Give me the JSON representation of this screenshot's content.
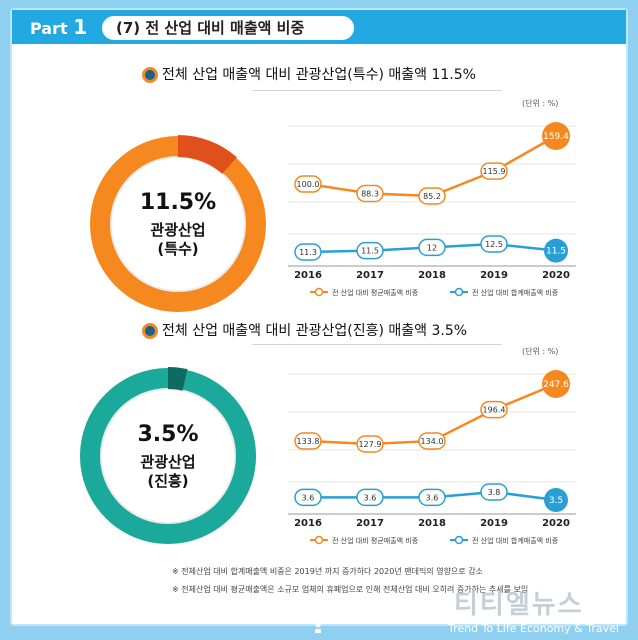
{
  "header": {
    "part_label": "Part",
    "part_number": "1",
    "title": "(7) 전 산업 대비 매출액 비중"
  },
  "sections": [
    {
      "title": "전체 산업 매출액 대비 관광산업(특수) 매출액 11.5%",
      "donut": {
        "percent_text": "11.5%",
        "label_line1": "관광산업",
        "label_line2": "(특수)",
        "value": 11.5,
        "color": "#f5891f",
        "light": "#fdd9b5"
      },
      "unit": "(단위 : %)"
    },
    {
      "title": "전체 산업 매출액 대비 관광산업(진흥) 매출액 3.5%",
      "donut": {
        "percent_text": "3.5%",
        "label_line1": "관광산업",
        "label_line2": "(진흥)",
        "value": 3.5,
        "color": "#1aa99a",
        "light": "#bfe7e1"
      },
      "unit": "(단위 : %)"
    }
  ],
  "chart_data": [
    {
      "type": "line",
      "x": [
        "2016",
        "2017",
        "2018",
        "2019",
        "2020"
      ],
      "series": [
        {
          "name": "전 산업 대비 평균매출액 비중",
          "values": [
            100.0,
            88.3,
            85.2,
            115.9,
            159.4
          ],
          "labels": [
            "100.0",
            "88.3",
            "85.2",
            "115.9",
            "159.4"
          ],
          "color": "#f5891f"
        },
        {
          "name": "전 산업 대비 합계매출액 비중",
          "values": [
            11.3,
            11.5,
            12,
            12.5,
            11.5
          ],
          "labels": [
            "11.3",
            "11.5",
            "12",
            "12.5",
            "11.5"
          ],
          "color": "#2a9fd6"
        }
      ]
    },
    {
      "type": "line",
      "x": [
        "2016",
        "2017",
        "2018",
        "2019",
        "2020"
      ],
      "series": [
        {
          "name": "전 산업 대비 평균매출액 비중",
          "values": [
            133.8,
            127.9,
            134.0,
            196.4,
            247.6
          ],
          "labels": [
            "133.8",
            "127.9",
            "134.0",
            "196.4",
            "247.6"
          ],
          "color": "#f5891f"
        },
        {
          "name": "전 산업 대비 합계매출액 비중",
          "values": [
            3.6,
            3.6,
            3.6,
            3.8,
            3.5
          ],
          "labels": [
            "3.6",
            "3.6",
            "3.6",
            "3.8",
            "3.5"
          ],
          "color": "#2a9fd6"
        }
      ]
    }
  ],
  "footnotes": [
    "※ 전체산업 대비 합계매출액 비중은 2019년 까지 증가하다 2020년 팬데믹의 영향으로 감소",
    "※ 전체산업 대비 평균매출액은 소규모 업체의 휴폐업으로 인해 전체산업 대비 오히려 증가하는 추세를 보임"
  ],
  "watermark": {
    "name": "티티엘뉴스",
    "tagline": "Trend To Life Economy & Travel"
  }
}
